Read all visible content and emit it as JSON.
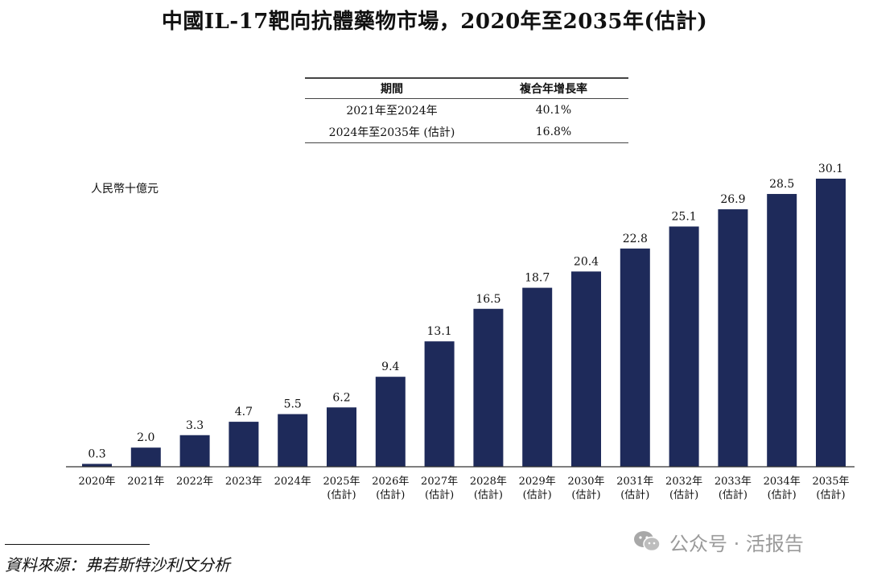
{
  "chart_data": {
    "type": "bar",
    "title": "中國IL-17靶向抗體藥物市場，2020年至2035年(估計)",
    "ylabel": "人民幣十億元",
    "xlabel": "",
    "categories": [
      [
        "2020年"
      ],
      [
        "2021年"
      ],
      [
        "2022年"
      ],
      [
        "2023年"
      ],
      [
        "2024年"
      ],
      [
        "2025年",
        "(估計)"
      ],
      [
        "2026年",
        "(估計)"
      ],
      [
        "2027年",
        "(估計)"
      ],
      [
        "2028年",
        "(估計)"
      ],
      [
        "2029年",
        "(估計)"
      ],
      [
        "2030年",
        "(估計)"
      ],
      [
        "2031年",
        "(估計)"
      ],
      [
        "2032年",
        "(估計)"
      ],
      [
        "2033年",
        "(估計)"
      ],
      [
        "2034年",
        "(估計)"
      ],
      [
        "2035年",
        "(估計)"
      ]
    ],
    "values": [
      0.3,
      2.0,
      3.3,
      4.7,
      5.5,
      6.2,
      9.4,
      13.1,
      16.5,
      18.7,
      20.4,
      22.8,
      25.1,
      26.9,
      28.5,
      30.1
    ],
    "value_labels": [
      "0.3",
      "2.0",
      "3.3",
      "4.7",
      "5.5",
      "6.2",
      "9.4",
      "13.1",
      "16.5",
      "18.7",
      "20.4",
      "22.8",
      "25.1",
      "26.9",
      "28.5",
      "30.1"
    ],
    "ylim": [
      0,
      30.1
    ],
    "grid": false,
    "bar_color": "#1e2a5a"
  },
  "cagr_table": {
    "headers": [
      "期間",
      "複合年增長率"
    ],
    "rows": [
      {
        "period": "2021年至2024年",
        "rate": "40.1%"
      },
      {
        "period": "2024年至2035年 (估計)",
        "rate": "16.8%"
      }
    ]
  },
  "source": "資料來源：弗若斯特沙利文分析",
  "watermark": {
    "text": "公众号 · 活报告",
    "icon": "wechat-icon"
  }
}
